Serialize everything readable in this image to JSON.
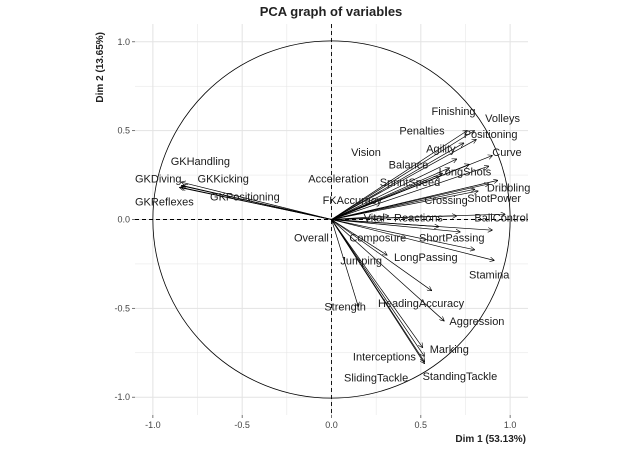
{
  "chart_data": {
    "type": "scatter",
    "title": "PCA graph of variables",
    "xlabel": "Dim 1 (53.13%)",
    "ylabel": "Dim 2 (13.65%)",
    "xlim": [
      -1.1,
      1.1
    ],
    "ylim": [
      -1.1,
      1.1
    ],
    "x_ticks": [
      -1.0,
      -0.5,
      0.0,
      0.5,
      1.0
    ],
    "y_ticks": [
      -1.0,
      -0.5,
      0.0,
      0.5,
      1.0
    ],
    "x_tick_labels": [
      "-1.0",
      "-0.5",
      "0.0",
      "0.5",
      "1.0"
    ],
    "y_tick_labels": [
      "-1.0",
      "-0.5",
      "0.0",
      "0.5",
      "1.0"
    ],
    "grid": true,
    "unit_circle": true,
    "arrow_color": "#000000",
    "grid_color": "#e3e3e3",
    "variables": [
      {
        "name": "GKHandling",
        "x": -0.84,
        "y": 0.21,
        "lx": -0.9,
        "ly": 0.33
      },
      {
        "name": "GKDiving",
        "x": -0.84,
        "y": 0.19,
        "lx": -1.1,
        "ly": 0.23
      },
      {
        "name": "GKKicking",
        "x": -0.83,
        "y": 0.19,
        "lx": -0.75,
        "ly": 0.23
      },
      {
        "name": "GKPositioning",
        "x": -0.84,
        "y": 0.18,
        "lx": -0.68,
        "ly": 0.13
      },
      {
        "name": "GKReflexes",
        "x": -0.85,
        "y": 0.18,
        "lx": -1.1,
        "ly": 0.1
      },
      {
        "name": "Finishing",
        "x": 0.76,
        "y": 0.5,
        "lx": 0.56,
        "ly": 0.61
      },
      {
        "name": "Volleys",
        "x": 0.8,
        "y": 0.5,
        "lx": 0.86,
        "ly": 0.57
      },
      {
        "name": "Positioning",
        "x": 0.81,
        "y": 0.45,
        "lx": 0.74,
        "ly": 0.48
      },
      {
        "name": "Penalties",
        "x": 0.74,
        "y": 0.43,
        "lx": 0.38,
        "ly": 0.5
      },
      {
        "name": "Curve",
        "x": 0.9,
        "y": 0.36,
        "lx": 0.9,
        "ly": 0.38
      },
      {
        "name": "Agility",
        "x": 0.7,
        "y": 0.34,
        "lx": 0.53,
        "ly": 0.4
      },
      {
        "name": "Vision",
        "x": 0.77,
        "y": 0.31,
        "lx": 0.11,
        "ly": 0.38
      },
      {
        "name": "Balance",
        "x": 0.66,
        "y": 0.29,
        "lx": 0.32,
        "ly": 0.31
      },
      {
        "name": "LongShots",
        "x": 0.88,
        "y": 0.3,
        "lx": 0.6,
        "ly": 0.27
      },
      {
        "name": "Acceleration",
        "x": 0.62,
        "y": 0.26,
        "lx": -0.13,
        "ly": 0.23
      },
      {
        "name": "SprintSpeed",
        "x": 0.6,
        "y": 0.24,
        "lx": 0.27,
        "ly": 0.21
      },
      {
        "name": "Dribbling",
        "x": 0.93,
        "y": 0.22,
        "lx": 0.87,
        "ly": 0.18
      },
      {
        "name": "ShotPower",
        "x": 0.88,
        "y": 0.2,
        "lx": 0.76,
        "ly": 0.12
      },
      {
        "name": "Crossing",
        "x": 0.82,
        "y": 0.16,
        "lx": 0.52,
        "ly": 0.11
      },
      {
        "name": "FKAccuracy",
        "x": 0.8,
        "y": 0.17,
        "lx": -0.05,
        "ly": 0.11
      },
      {
        "name": "BallControl",
        "x": 0.97,
        "y": 0.03,
        "lx": 0.8,
        "ly": 0.01
      },
      {
        "name": "Reactions",
        "x": 0.7,
        "y": 0.02,
        "lx": 0.35,
        "ly": 0.01
      },
      {
        "name": "Vital",
        "x": 0.32,
        "y": 0.02,
        "lx": 0.18,
        "ly": 0.01
      },
      {
        "name": "Overall",
        "x": 0.6,
        "y": -0.04,
        "lx": -0.21,
        "ly": -0.1
      },
      {
        "name": "Composure",
        "x": 0.72,
        "y": -0.07,
        "lx": 0.1,
        "ly": -0.1
      },
      {
        "name": "ShortPassing",
        "x": 0.9,
        "y": -0.06,
        "lx": 0.49,
        "ly": -0.1
      },
      {
        "name": "LongPassing",
        "x": 0.8,
        "y": -0.17,
        "lx": 0.35,
        "ly": -0.21
      },
      {
        "name": "Jumping",
        "x": 0.31,
        "y": -0.2,
        "lx": 0.05,
        "ly": -0.23
      },
      {
        "name": "Stamina",
        "x": 0.91,
        "y": -0.23,
        "lx": 0.77,
        "ly": -0.31
      },
      {
        "name": "HeadingAccuracy",
        "x": 0.56,
        "y": -0.4,
        "lx": 0.26,
        "ly": -0.47
      },
      {
        "name": "Strength",
        "x": 0.15,
        "y": -0.49,
        "lx": -0.04,
        "ly": -0.49
      },
      {
        "name": "Aggression",
        "x": 0.63,
        "y": -0.57,
        "lx": 0.66,
        "ly": -0.57
      },
      {
        "name": "Marking",
        "x": 0.51,
        "y": -0.72,
        "lx": 0.55,
        "ly": -0.73
      },
      {
        "name": "Interceptions",
        "x": 0.52,
        "y": -0.77,
        "lx": 0.12,
        "ly": -0.77
      },
      {
        "name": "SlidingTackle",
        "x": 0.52,
        "y": -0.8,
        "lx": 0.07,
        "ly": -0.89
      },
      {
        "name": "StandingTackle",
        "x": 0.52,
        "y": -0.81,
        "lx": 0.51,
        "ly": -0.88
      }
    ]
  }
}
